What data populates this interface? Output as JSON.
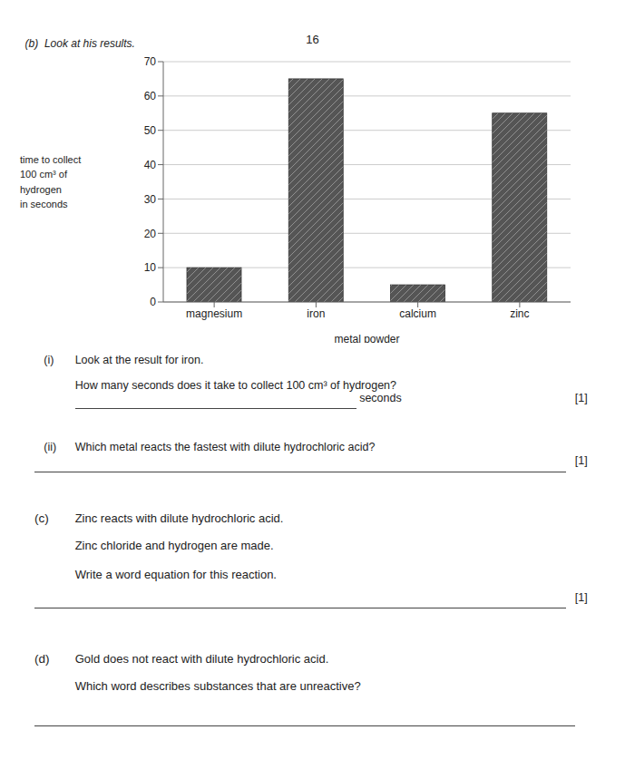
{
  "chart_data": {
    "type": "bar",
    "title": "(b)  Look at his results.",
    "categories": [
      "magnesium",
      "iron",
      "calcium",
      "zinc"
    ],
    "values": [
      10,
      65,
      5,
      55
    ],
    "color": "#555555",
    "xlabel": "metal powder",
    "ylabel": "time to collect\n100 cm³ of\nhydrogen\nin seconds",
    "ylim": [
      0,
      70
    ],
    "yticks": [
      0,
      10,
      20,
      30,
      40,
      50,
      60,
      70
    ],
    "grid": true,
    "annotations": [
      "16",
      "(i)",
      "Look at the result for iron.",
      "How many seconds does it take to collect 100 cm³ of hydrogen?",
      "seconds",
      "[1]",
      "(ii)",
      "Which metal reacts the fastest with dilute hydrochloric acid?",
      "[1]",
      "(c)",
      "Zinc reacts with dilute hydrochloric acid.",
      "Zinc chloride and hydrogen are made.",
      "Write a word equation for this reaction.",
      "[1]",
      "(d)",
      "Gold does not react with dilute hydrochloric acid.",
      "Which word describes substances that are unreactive?"
    ]
  }
}
